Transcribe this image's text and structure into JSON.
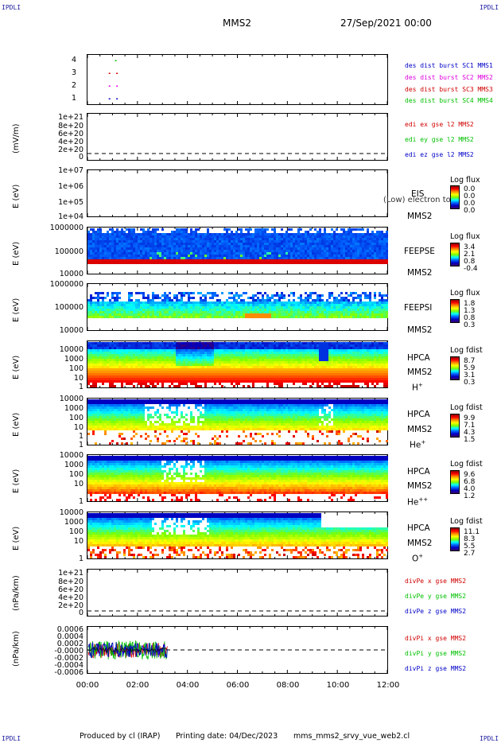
{
  "header": {
    "corner_label": "IPDLI",
    "spacecraft": "MMS2",
    "datetime": "27/Sep/2021 00:00"
  },
  "footer": {
    "producer": "Produced by cl (IRAP)",
    "printing_date": "Printing date: 04/Dec/2023",
    "file": "mms_mms2_srvy_vue_web2.cl"
  },
  "chart_data": {
    "type": "heatmap",
    "x_ticks": [
      "00:00",
      "02:00",
      "04:00",
      "06:00",
      "08:00",
      "10:00",
      "12:00"
    ],
    "xlim_hours": [
      0,
      12
    ],
    "panels": [
      {
        "id": "burst",
        "type": "scatter",
        "ylabel": "",
        "yticks": [
          "4",
          "3",
          "2",
          "1"
        ],
        "legend": [
          {
            "text": "des dist burst SC1 MMS1",
            "color": "#0000c8"
          },
          {
            "text": "des dist burst SC2 MMS2",
            "color": "#e000e0"
          },
          {
            "text": "des dist burst SC3 MMS3",
            "color": "#d00000"
          },
          {
            "text": "des dist burst SC4 MMS4",
            "color": "#00c000"
          }
        ],
        "series": [
          {
            "name": "des dist burst SC1 MMS1",
            "y": 1,
            "x_hours": [
              0.85,
              1.15
            ],
            "color": "#0000c8"
          },
          {
            "name": "des dist burst SC2 MMS2",
            "y": 2,
            "x_hours": [
              0.85,
              1.15
            ],
            "color": "#e000e0"
          },
          {
            "name": "des dist burst SC3 MMS3",
            "y": 3,
            "x_hours": [
              0.85,
              1.15
            ],
            "color": "#d00000"
          },
          {
            "name": "des dist burst SC4 MMS4",
            "y": 4,
            "x_hours": [
              1.1
            ],
            "color": "#00c000"
          }
        ]
      },
      {
        "id": "edi",
        "type": "line",
        "ylabel": "(mV/m)",
        "yticks": [
          "1e+21",
          "8e+20",
          "6e+20",
          "4e+20",
          "2e+20",
          "0"
        ],
        "legend": [
          {
            "text": "edi ex gse l2 MMS2",
            "color": "#d00000"
          },
          {
            "text": "edi ey gse l2 MMS2",
            "color": "#00c000"
          },
          {
            "text": "edi ez gse l2 MMS2",
            "color": "#0000c8"
          }
        ]
      },
      {
        "id": "eis",
        "type": "heatmap",
        "ylabel": "E (eV)",
        "yticks": [
          "1e+07",
          "1e+06",
          "1e+05",
          "1e+04"
        ],
        "right_labels": [
          "EIS",
          "MMS2"
        ],
        "right_overlap_text": "(Low) electron to",
        "colorbar": {
          "title": "Log flux",
          "values": [
            "0.0",
            "0.0",
            "0.0",
            "0.0"
          ]
        }
      },
      {
        "id": "feepse",
        "type": "heatmap",
        "ylabel": "E (eV)",
        "yticks": [
          "1000000",
          "100000",
          "10000"
        ],
        "right_labels": [
          "FEEPSE",
          "MMS2"
        ],
        "colorbar": {
          "title": "Log flux",
          "values": [
            "3.4",
            "2.1",
            "0.8",
            "-0.4"
          ]
        }
      },
      {
        "id": "feepsi",
        "type": "heatmap",
        "ylabel": "E (eV)",
        "yticks": [
          "1000000",
          "100000",
          "10000"
        ],
        "right_labels": [
          "FEEPSI",
          "MMS2"
        ],
        "colorbar": {
          "title": "Log flux",
          "values": [
            "1.8",
            "1.3",
            "0.8",
            "0.3"
          ]
        }
      },
      {
        "id": "hpca_h",
        "type": "heatmap",
        "ylabel": "E (eV)",
        "yticks": [
          "10000",
          "1000",
          "100",
          "10",
          "1"
        ],
        "right_labels": [
          "HPCA",
          "MMS2"
        ],
        "species": "H",
        "charge": "+",
        "colorbar": {
          "title": "Log fdist",
          "values": [
            "8.7",
            "5.9",
            "3.1",
            "0.3"
          ]
        }
      },
      {
        "id": "hpca_he",
        "type": "heatmap",
        "ylabel": "E (eV)",
        "yticks": [
          "10000",
          "1000",
          "100",
          "10",
          "1"
        ],
        "right_labels": [
          "HPCA",
          "MMS2"
        ],
        "species": "He",
        "charge": "+",
        "colorbar": {
          "title": "Log fdist",
          "values": [
            "9.9",
            "7.1",
            "4.3",
            "1.5"
          ]
        }
      },
      {
        "id": "hpca_he2",
        "type": "heatmap",
        "ylabel": "E (eV)",
        "yticks": [
          "10000",
          "1000",
          "100",
          "10",
          "1"
        ],
        "right_labels": [
          "HPCA",
          "MMS2"
        ],
        "species": "He",
        "charge": "++",
        "colorbar": {
          "title": "Log fdist",
          "values": [
            "9.6",
            "6.8",
            "4.0",
            "1.2"
          ]
        }
      },
      {
        "id": "hpca_o",
        "type": "heatmap",
        "ylabel": "E (eV)",
        "yticks": [
          "10000",
          "1000",
          "100",
          "10",
          "1"
        ],
        "right_labels": [
          "HPCA",
          "MMS2"
        ],
        "species": "O",
        "charge": "+",
        "colorbar": {
          "title": "Log fdist",
          "values": [
            "11.1",
            "8.3",
            "5.5",
            "2.7"
          ]
        }
      },
      {
        "id": "divpe",
        "type": "line",
        "ylabel": "(nPa/km)",
        "yticks": [
          "1e+21",
          "8e+20",
          "6e+20",
          "4e+20",
          "2e+20",
          "0"
        ],
        "legend": [
          {
            "text": "divPe x gse MMS2",
            "color": "#d00000"
          },
          {
            "text": "divPe y gse MMS2",
            "color": "#00c000"
          },
          {
            "text": "divPe z gse MMS2",
            "color": "#0000c8"
          }
        ]
      },
      {
        "id": "divpi",
        "type": "line",
        "ylabel": "(nPa/km)",
        "yticks": [
          "0.0006",
          "0.0004",
          "0.0002",
          "-0.0000",
          "-0.0002",
          "-0.0004",
          "-0.0006"
        ],
        "data_extent_hours": [
          0,
          3.2
        ],
        "legend": [
          {
            "text": "divPi x gse MMS2",
            "color": "#d00000"
          },
          {
            "text": "divPi y gse MMS2",
            "color": "#00c000"
          },
          {
            "text": "divPi z gse MMS2",
            "color": "#0000c8"
          }
        ]
      }
    ]
  }
}
